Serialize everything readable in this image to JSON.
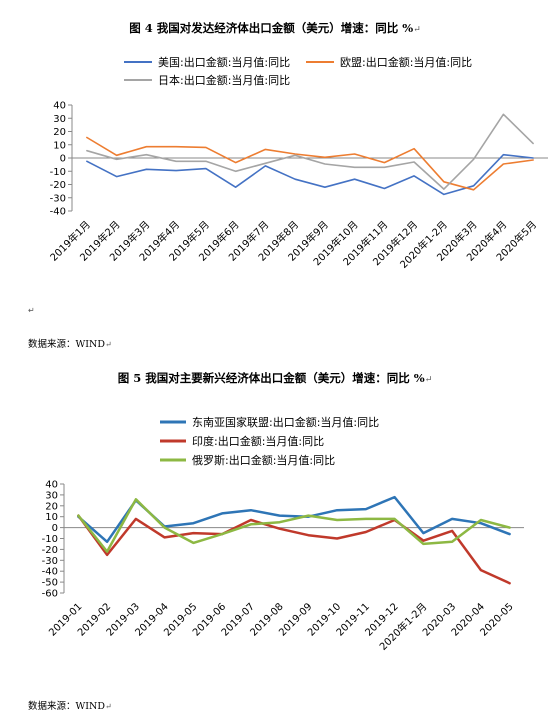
{
  "para_mark": "↵",
  "chart_data": [
    {
      "type": "line",
      "title": "图 4   我国对发达经济体出口金额（美元）增速：同比 %",
      "source": "数据来源：WIND",
      "categories": [
        "2019年1月",
        "2019年2月",
        "2019年3月",
        "2019年4月",
        "2019年5月",
        "2019年6月",
        "2019年7月",
        "2019年8月",
        "2019年9月",
        "2019年10月",
        "2019年11月",
        "2019年12月",
        "2020年1-2月",
        "2020年3月",
        "2020年4月",
        "2020年5月"
      ],
      "ylim": [
        -40,
        40
      ],
      "yticks": [
        40,
        30,
        20,
        10,
        0,
        -10,
        -20,
        -30,
        -40
      ],
      "legend_position": "top",
      "grid": false,
      "series": [
        {
          "name": "美国:出口金额:当月值:同比",
          "color": "#4472c4",
          "values": [
            -2.5,
            -14,
            -8.5,
            -9.5,
            -8,
            -22,
            -6,
            -16,
            -22,
            -16,
            -23,
            -13.5,
            -27.5,
            -21,
            2.5,
            0
          ]
        },
        {
          "name": "欧盟:出口金额:当月值:同比",
          "color": "#ed7d31",
          "values": [
            15.5,
            2,
            8.5,
            8.5,
            8,
            -3.5,
            6.5,
            3,
            0.5,
            3,
            -3.5,
            7,
            -18,
            -24,
            -4.5,
            -1.5
          ]
        },
        {
          "name": "日本:出口金额:当月值:同比",
          "color": "#a5a5a5",
          "values": [
            5.5,
            -1,
            2.5,
            -2.5,
            -2.5,
            -10,
            -4,
            2,
            -4.5,
            -7,
            -7,
            -3,
            -23.5,
            -1,
            33,
            11
          ]
        }
      ]
    },
    {
      "type": "line",
      "title": "图 5   我国对主要新兴经济体出口金额（美元）增速：同比 %",
      "source": "数据来源：WIND",
      "categories": [
        "2019-01",
        "2019-02",
        "2019-03",
        "2019-04",
        "2019-05",
        "2019-06",
        "2019-07",
        "2019-08",
        "2019-09",
        "2019-10",
        "2019-11",
        "2019-12",
        "2020年1-2月",
        "2020-03",
        "2020-04",
        "2020-05"
      ],
      "ylim": [
        -60,
        40
      ],
      "yticks": [
        40,
        30,
        20,
        10,
        0,
        -10,
        -20,
        -30,
        -40,
        -50,
        -60
      ],
      "legend_position": "top",
      "grid": false,
      "series": [
        {
          "name": "东南亚国家联盟:出口金额:当月值:同比",
          "color": "#2e75b6",
          "values": [
            10,
            -13,
            25,
            1,
            4,
            13,
            16,
            11,
            10,
            16,
            17,
            28,
            -5,
            8,
            4,
            -6
          ]
        },
        {
          "name": "印度:出口金额:当月值:同比",
          "color": "#c0392b",
          "values": [
            11,
            -25,
            8,
            -9,
            -5,
            -6,
            7,
            -1,
            -7,
            -10,
            -4,
            7,
            -12,
            -3,
            -39,
            -51
          ]
        },
        {
          "name": "俄罗斯:出口金额:当月值:同比",
          "color": "#8db843",
          "values": [
            11,
            -22,
            26,
            0,
            -14,
            -6,
            3,
            5,
            11,
            7,
            8,
            8,
            -15,
            -13,
            7,
            0
          ]
        }
      ]
    }
  ]
}
